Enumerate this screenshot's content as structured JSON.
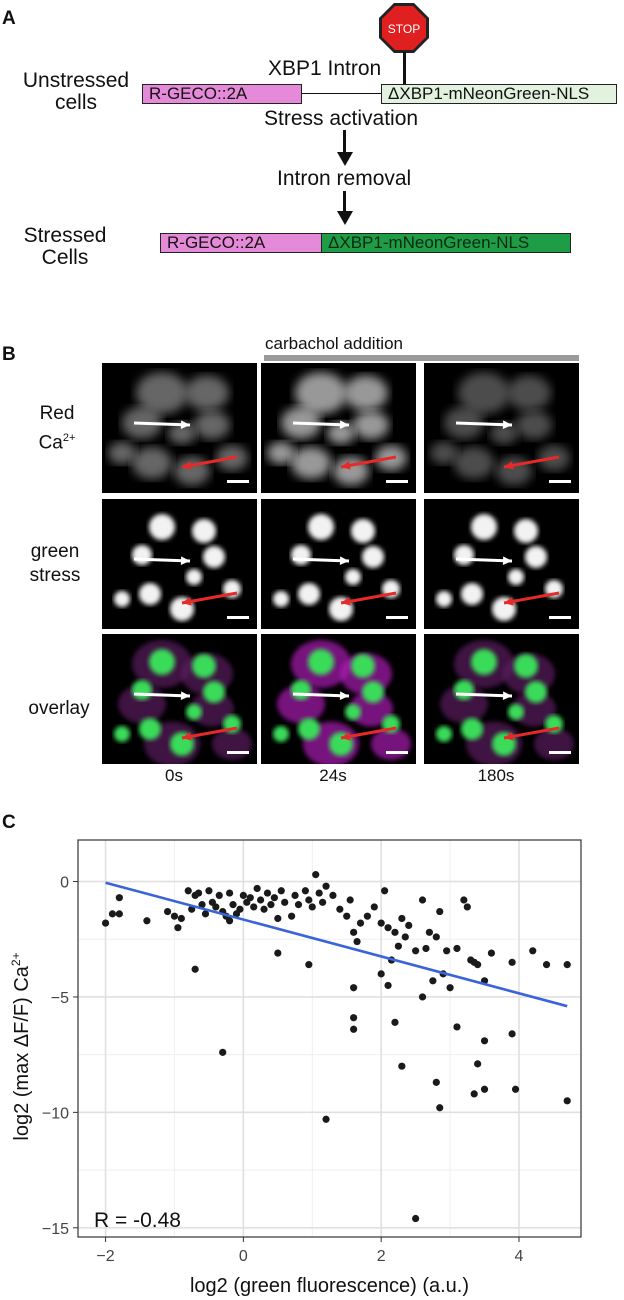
{
  "panel_a": {
    "letter": "A",
    "unstressed_label_line1": "Unstressed",
    "unstressed_label_line2": "cells",
    "stop_sign": "STOP",
    "intron_label": "XBP1 Intron",
    "box_rgeco": "R-GECO::2A",
    "box_xbp1": "ΔXBP1-mNeonGreen-NLS",
    "step1": "Stress activation",
    "step2": "Intron removal",
    "stressed_label_line1": "Stressed",
    "stressed_label_line2": "Cells",
    "box_rgeco_2": "R-GECO::2A",
    "box_xbp1_2": "ΔXBP1-mNeonGreen-NLS"
  },
  "panel_b": {
    "letter": "B",
    "treatment_label": "carbachol addition",
    "rows": [
      {
        "line1": "Red",
        "line2": "Ca",
        "sup": "2+"
      },
      {
        "line1": "green",
        "line2": "stress",
        "sup": ""
      },
      {
        "line1": "overlay",
        "line2": "",
        "sup": ""
      }
    ],
    "timepoints": [
      "0s",
      "24s",
      "180s"
    ]
  },
  "panel_c": {
    "letter": "C"
  },
  "chart_data": {
    "type": "scatter",
    "xlabel": "log2 (green fluorescence) (a.u.)",
    "ylabel": "log2 (max ΔF/F) Ca",
    "ylabel_sup": "2+",
    "xlim": [
      -2.4,
      4.9
    ],
    "ylim": [
      -15.4,
      1.8
    ],
    "xticks": [
      -2,
      0,
      2,
      4
    ],
    "yticks": [
      0,
      -5,
      -10,
      -15
    ],
    "grid": true,
    "annotation": "R = -0.48",
    "fit_line": {
      "x": [
        -2.0,
        4.7
      ],
      "y": [
        -0.05,
        -5.4
      ],
      "color": "#3b64d8"
    },
    "point_color": "#1a1a1a",
    "points": [
      [
        -2.0,
        -1.8
      ],
      [
        -1.9,
        -1.4
      ],
      [
        -1.8,
        -0.7
      ],
      [
        -1.8,
        -1.4
      ],
      [
        -1.4,
        -1.7
      ],
      [
        -1.1,
        -1.3
      ],
      [
        -1.0,
        -1.5
      ],
      [
        -0.95,
        -2.0
      ],
      [
        -0.9,
        -1.6
      ],
      [
        -0.8,
        -0.4
      ],
      [
        -0.75,
        -1.2
      ],
      [
        -0.7,
        -0.6
      ],
      [
        -0.65,
        -0.5
      ],
      [
        -0.6,
        -1.0
      ],
      [
        -0.55,
        -1.4
      ],
      [
        -0.5,
        -0.4
      ],
      [
        -0.45,
        -0.9
      ],
      [
        -0.4,
        -1.1
      ],
      [
        -0.35,
        -0.6
      ],
      [
        -0.3,
        -1.3
      ],
      [
        -0.25,
        -1.5
      ],
      [
        -0.2,
        -1.7
      ],
      [
        -0.2,
        -0.5
      ],
      [
        -0.15,
        -1.0
      ],
      [
        -0.1,
        -1.4
      ],
      [
        -0.05,
        -1.2
      ],
      [
        0.0,
        -0.6
      ],
      [
        0.05,
        -0.9
      ],
      [
        0.1,
        -0.7
      ],
      [
        0.15,
        -1.1
      ],
      [
        0.2,
        -0.3
      ],
      [
        0.25,
        -0.8
      ],
      [
        0.3,
        -1.2
      ],
      [
        0.35,
        -0.5
      ],
      [
        0.4,
        -1.0
      ],
      [
        0.45,
        -0.7
      ],
      [
        0.5,
        -1.6
      ],
      [
        0.55,
        -0.4
      ],
      [
        0.6,
        -0.9
      ],
      [
        0.7,
        -1.5
      ],
      [
        0.75,
        -0.6
      ],
      [
        0.8,
        -1.0
      ],
      [
        0.9,
        -0.4
      ],
      [
        0.95,
        -0.8
      ],
      [
        1.0,
        -1.1
      ],
      [
        1.05,
        0.3
      ],
      [
        1.1,
        -0.5
      ],
      [
        1.15,
        -0.9
      ],
      [
        1.2,
        -0.2
      ],
      [
        1.3,
        -0.6
      ],
      [
        1.4,
        -1.2
      ],
      [
        1.5,
        -1.5
      ],
      [
        1.55,
        -0.8
      ],
      [
        1.6,
        -2.2
      ],
      [
        1.65,
        -2.6
      ],
      [
        1.7,
        -1.8
      ],
      [
        1.8,
        -1.5
      ],
      [
        1.9,
        -1.1
      ],
      [
        2.0,
        -1.8
      ],
      [
        2.05,
        -0.4
      ],
      [
        2.1,
        -2.0
      ],
      [
        2.15,
        -3.4
      ],
      [
        2.2,
        -2.2
      ],
      [
        2.25,
        -2.8
      ],
      [
        2.3,
        -1.6
      ],
      [
        2.35,
        -2.4
      ],
      [
        2.4,
        -1.9
      ],
      [
        2.5,
        -3.0
      ],
      [
        2.6,
        -0.8
      ],
      [
        2.65,
        -2.9
      ],
      [
        2.7,
        -2.2
      ],
      [
        2.8,
        -2.4
      ],
      [
        2.85,
        -1.3
      ],
      [
        2.9,
        -4.0
      ],
      [
        2.95,
        -3.0
      ],
      [
        3.0,
        -4.6
      ],
      [
        3.1,
        -2.9
      ],
      [
        3.2,
        -0.8
      ],
      [
        3.25,
        -1.1
      ],
      [
        3.3,
        -3.4
      ],
      [
        3.35,
        -3.5
      ],
      [
        3.4,
        -3.6
      ],
      [
        3.5,
        -4.3
      ],
      [
        3.6,
        -3.1
      ],
      [
        3.9,
        -3.5
      ],
      [
        4.2,
        -3.0
      ],
      [
        4.4,
        -3.6
      ],
      [
        4.7,
        -3.6
      ],
      [
        -0.7,
        -3.8
      ],
      [
        0.5,
        -3.1
      ],
      [
        0.95,
        -3.6
      ],
      [
        1.6,
        -4.6
      ],
      [
        1.6,
        -5.9
      ],
      [
        1.6,
        -6.4
      ],
      [
        2.0,
        -4.0
      ],
      [
        2.1,
        -4.5
      ],
      [
        2.2,
        -6.1
      ],
      [
        2.6,
        -5.0
      ],
      [
        2.75,
        -4.3
      ],
      [
        3.1,
        -6.3
      ],
      [
        3.4,
        -7.9
      ],
      [
        3.5,
        -6.9
      ],
      [
        3.9,
        -6.6
      ],
      [
        -0.3,
        -7.4
      ],
      [
        1.2,
        -10.3
      ],
      [
        2.3,
        -8.0
      ],
      [
        2.8,
        -8.7
      ],
      [
        2.85,
        -9.8
      ],
      [
        3.35,
        -9.2
      ],
      [
        3.5,
        -9.0
      ],
      [
        3.95,
        -9.0
      ],
      [
        4.7,
        -9.5
      ],
      [
        2.5,
        -14.6
      ]
    ]
  }
}
